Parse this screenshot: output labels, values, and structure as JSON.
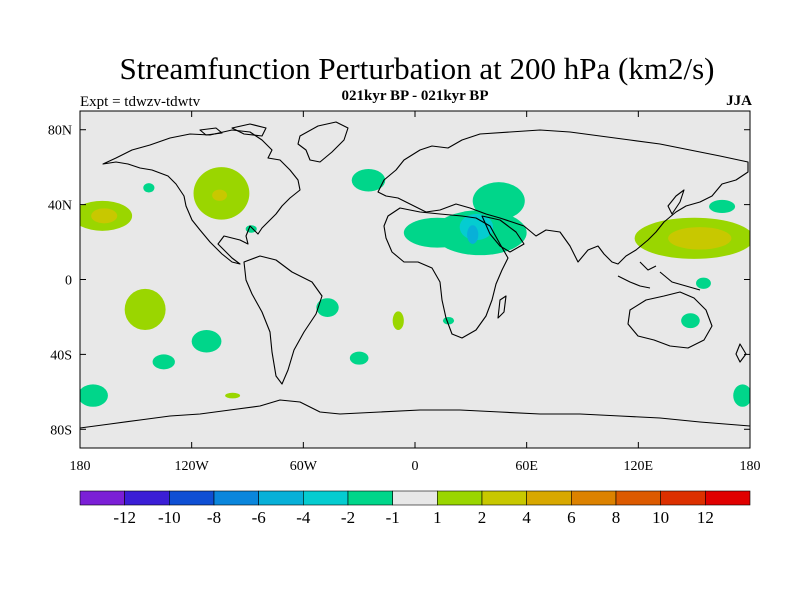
{
  "title": "Streamfunction Perturbation at 200 hPa (km2/s)",
  "subtitle": "021kyr BP - 021kyr BP",
  "left_label": "Expt = tdwzv-tdwtv",
  "right_label": "JJA",
  "chart_data": {
    "type": "heatmap",
    "projection": "equirectangular",
    "xlim": [
      -180,
      180
    ],
    "ylim": [
      -90,
      90
    ],
    "x_ticks": [
      {
        "value": -180,
        "label": "180"
      },
      {
        "value": -120,
        "label": "120W"
      },
      {
        "value": -60,
        "label": "60W"
      },
      {
        "value": 0,
        "label": "0"
      },
      {
        "value": 60,
        "label": "60E"
      },
      {
        "value": 120,
        "label": "120E"
      },
      {
        "value": 180,
        "label": "180"
      }
    ],
    "y_ticks": [
      {
        "value": 80,
        "label": "80N"
      },
      {
        "value": 40,
        "label": "40N"
      },
      {
        "value": 0,
        "label": "0"
      },
      {
        "value": -40,
        "label": "40S"
      },
      {
        "value": -80,
        "label": "80S"
      }
    ],
    "background_color": "#e8e8e8",
    "colorbar": {
      "colors": [
        "#7b1fd6",
        "#3b1ed6",
        "#0f4fd4",
        "#0a86dc",
        "#08b0d8",
        "#05ccd0",
        "#00d68a",
        "#e8e8e8",
        "#9ad600",
        "#c8c800",
        "#d8a800",
        "#dc8200",
        "#dc5a00",
        "#dc3000",
        "#e00000"
      ],
      "tick_labels": [
        "-12",
        "-10",
        "-8",
        "-6",
        "-4",
        "-2",
        "-1",
        "1",
        "2",
        "4",
        "6",
        "8",
        "10",
        "12"
      ]
    },
    "regions": [
      {
        "value": 2,
        "color": "#9ad600",
        "lon": -104,
        "lat": 46,
        "rlon": 15,
        "rlat": 14
      },
      {
        "value": 4,
        "color": "#c8c800",
        "lon": -105,
        "lat": 45,
        "rlon": 4,
        "rlat": 3
      },
      {
        "value": 2,
        "color": "#9ad600",
        "lon": -168,
        "lat": 34,
        "rlon": 16,
        "rlat": 8
      },
      {
        "value": 4,
        "color": "#c8c800",
        "lon": -167,
        "lat": 34,
        "rlon": 7,
        "rlat": 4
      },
      {
        "value": 2,
        "color": "#9ad600",
        "lon": -145,
        "lat": -16,
        "rlon": 11,
        "rlat": 11
      },
      {
        "value": 2,
        "color": "#9ad600",
        "lon": -9,
        "lat": -22,
        "rlon": 3,
        "rlat": 5
      },
      {
        "value": 2,
        "color": "#9ad600",
        "lon": 150,
        "lat": 22,
        "rlon": 32,
        "rlat": 11
      },
      {
        "value": 4,
        "color": "#c8c800",
        "lon": 153,
        "lat": 22,
        "rlon": 17,
        "rlat": 6
      },
      {
        "value": -1,
        "color": "#00d68a",
        "lon": 35,
        "lat": 25,
        "rlon": 25,
        "rlat": 12
      },
      {
        "value": -1,
        "color": "#00d68a",
        "lon": 12,
        "lat": 25,
        "rlon": 18,
        "rlat": 8
      },
      {
        "value": -1,
        "color": "#00d68a",
        "lon": 45,
        "lat": 42,
        "rlon": 14,
        "rlat": 10
      },
      {
        "value": -2,
        "color": "#05ccd0",
        "lon": 33,
        "lat": 28,
        "rlon": 9,
        "rlat": 7
      },
      {
        "value": -4,
        "color": "#08b0d8",
        "lon": 31,
        "lat": 24,
        "rlon": 3,
        "rlat": 5
      },
      {
        "value": -1,
        "color": "#00d68a",
        "lon": -25,
        "lat": 53,
        "rlon": 9,
        "rlat": 6
      },
      {
        "value": -1,
        "color": "#00d68a",
        "lon": -143,
        "lat": 49,
        "rlon": 3,
        "rlat": 2.5
      },
      {
        "value": -1,
        "color": "#00d68a",
        "lon": -173,
        "lat": -62,
        "rlon": 8,
        "rlat": 6
      },
      {
        "value": -1,
        "color": "#00d68a",
        "lon": -112,
        "lat": -33,
        "rlon": 8,
        "rlat": 6
      },
      {
        "value": -1,
        "color": "#00d68a",
        "lon": -47,
        "lat": -15,
        "rlon": 6,
        "rlat": 5
      },
      {
        "value": -1,
        "color": "#00d68a",
        "lon": -135,
        "lat": -44,
        "rlon": 6,
        "rlat": 4
      },
      {
        "value": -1,
        "color": "#00d68a",
        "lon": -30,
        "lat": -42,
        "rlon": 5,
        "rlat": 3.5
      },
      {
        "value": -1,
        "color": "#00d68a",
        "lon": 165,
        "lat": 39,
        "rlon": 7,
        "rlat": 3.5
      },
      {
        "value": -1,
        "color": "#00d68a",
        "lon": 148,
        "lat": -22,
        "rlon": 5,
        "rlat": 4
      },
      {
        "value": -1,
        "color": "#00d68a",
        "lon": 155,
        "lat": -2,
        "rlon": 4,
        "rlat": 3
      },
      {
        "value": -1,
        "color": "#00d68a",
        "lon": 176,
        "lat": -62,
        "rlon": 5,
        "rlat": 6
      },
      {
        "value": -1,
        "color": "#00d68a",
        "lon": -88,
        "lat": 27,
        "rlon": 3,
        "rlat": 2
      },
      {
        "value": -1,
        "color": "#00d68a",
        "lon": 18,
        "lat": -22,
        "rlon": 3,
        "rlat": 2
      },
      {
        "value": 2,
        "color": "#9ad600",
        "lon": -98,
        "lat": -62,
        "rlon": 4,
        "rlat": 1.5
      }
    ]
  }
}
